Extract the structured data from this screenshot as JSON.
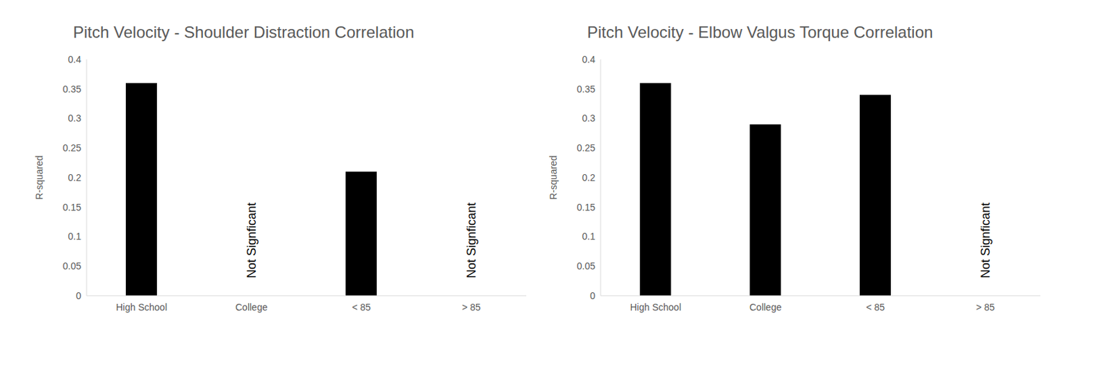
{
  "chart_data": [
    {
      "type": "bar",
      "title": "Pitch Velocity - Shoulder Distraction Correlation",
      "y_label": "R-squared",
      "categories": [
        "High School",
        "College",
        "< 85",
        "> 85"
      ],
      "values": [
        0.36,
        null,
        0.21,
        null
      ],
      "color": "#000000",
      "ylim": [
        0,
        0.4
      ],
      "yticks": [
        0,
        0.05,
        0.1,
        0.15,
        0.2,
        0.25,
        0.3,
        0.35,
        0.4
      ],
      "grid": false,
      "annotations": [
        {
          "category": "College",
          "text": "Not Signficant"
        },
        {
          "category": "> 85",
          "text": "Not Signficant"
        }
      ]
    },
    {
      "type": "bar",
      "title": "Pitch Velocity - Elbow Valgus Torque Correlation",
      "y_label": "R-squared",
      "categories": [
        "High School",
        "College",
        "< 85",
        "> 85"
      ],
      "values": [
        0.36,
        0.29,
        0.34,
        null
      ],
      "color": "#000000",
      "ylim": [
        0,
        0.4
      ],
      "yticks": [
        0,
        0.05,
        0.1,
        0.15,
        0.2,
        0.25,
        0.3,
        0.35,
        0.4
      ],
      "grid": false,
      "annotations": [
        {
          "category": "> 85",
          "text": "Not Signficant"
        }
      ]
    }
  ]
}
